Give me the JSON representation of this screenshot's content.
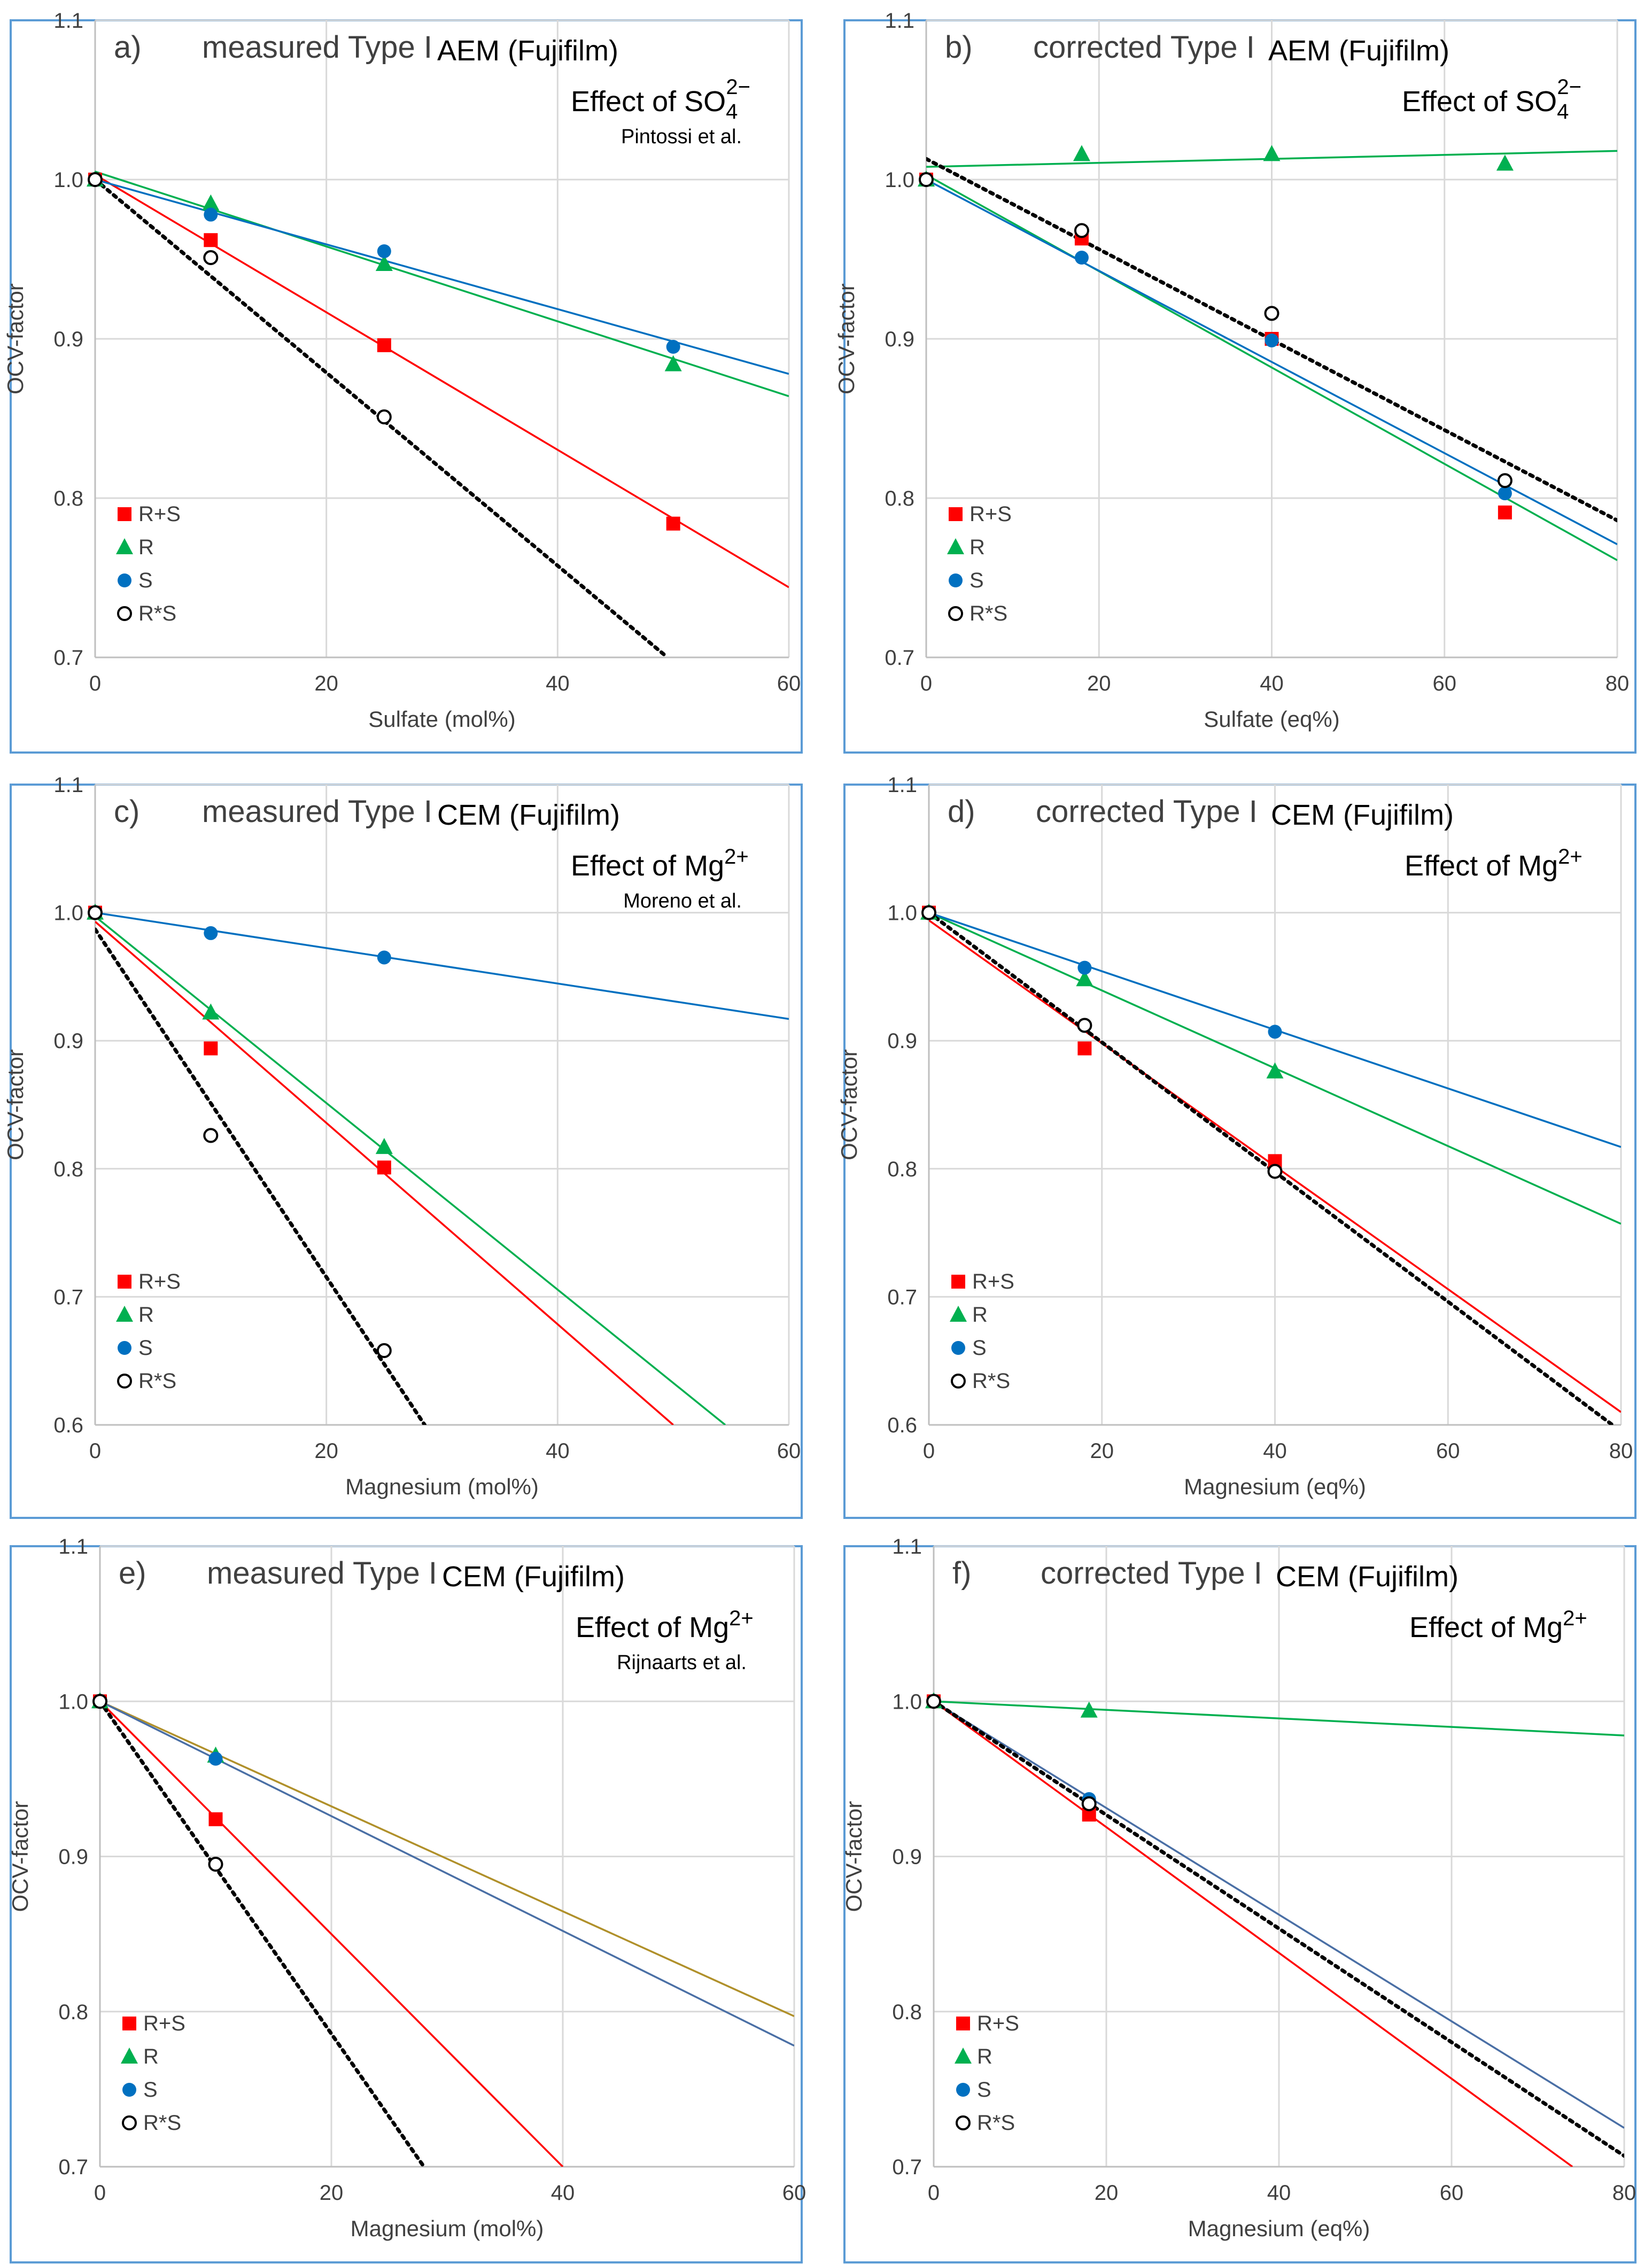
{
  "chart_data": [
    {
      "type": "scatter",
      "panel_label": "a)",
      "title": "measured Type I",
      "membrane": "AEM (Fujifilm)",
      "effect_prefix": "Effect of SO",
      "effect_sub": "4",
      "effect_sup": "2−",
      "source": "Pintossi et al.",
      "xlabel": "Sulfate (mol%)",
      "ylabel": "OCV-factor",
      "xlim": [
        0,
        60
      ],
      "ylim": [
        0.7,
        1.1
      ],
      "xticks": [
        0,
        20,
        40,
        60
      ],
      "yticks": [
        0.7,
        0.8,
        0.9,
        1.0,
        1.1
      ],
      "series": [
        {
          "name": "R+S",
          "marker": "square",
          "color": "#ff0000",
          "dotted": false,
          "x": [
            0,
            10,
            25,
            50
          ],
          "y": [
            1.0,
            0.962,
            0.896,
            0.784
          ],
          "trend": [
            [
              0,
              1.003
            ],
            [
              60,
              0.744
            ]
          ]
        },
        {
          "name": "R",
          "marker": "triangle",
          "color": "#00b050",
          "dotted": false,
          "x": [
            0,
            10,
            25,
            50
          ],
          "y": [
            1.0,
            0.985,
            0.947,
            0.884
          ],
          "trend": [
            [
              0,
              1.005
            ],
            [
              60,
              0.864
            ]
          ]
        },
        {
          "name": "S",
          "marker": "circle",
          "color": "#0070c0",
          "dotted": false,
          "x": [
            0,
            10,
            25,
            50
          ],
          "y": [
            1.0,
            0.978,
            0.955,
            0.895
          ],
          "trend": [
            [
              0,
              1.0
            ],
            [
              60,
              0.878
            ]
          ]
        },
        {
          "name": "R*S",
          "marker": "open-circle",
          "color": "#000000",
          "dotted": true,
          "x": [
            0,
            10,
            25
          ],
          "y": [
            1.0,
            0.951,
            0.851
          ],
          "trend": [
            [
              0,
              1.0
            ],
            [
              49.5,
              0.7
            ]
          ]
        }
      ]
    },
    {
      "type": "scatter",
      "panel_label": "b)",
      "title": "corrected Type I",
      "membrane": "AEM (Fujifilm)",
      "effect_prefix": "Effect of SO",
      "effect_sub": "4",
      "effect_sup": "2−",
      "source": "",
      "xlabel": "Sulfate (eq%)",
      "ylabel": "OCV-factor",
      "xlim": [
        0,
        80
      ],
      "ylim": [
        0.7,
        1.1
      ],
      "xticks": [
        0,
        20,
        40,
        60,
        80
      ],
      "yticks": [
        0.7,
        0.8,
        0.9,
        1.0,
        1.1
      ],
      "series": [
        {
          "name": "R+S",
          "marker": "square",
          "color": "#ff0000",
          "dotted": false,
          "x": [
            0,
            18,
            40,
            67
          ],
          "y": [
            1.0,
            0.963,
            0.9,
            0.791
          ],
          "trend": null
        },
        {
          "name": "R",
          "marker": "triangle",
          "color": "#00b050",
          "dotted": false,
          "x": [
            0,
            18,
            40,
            67
          ],
          "y": [
            1.0,
            1.016,
            1.016,
            1.01
          ],
          "trend": [
            [
              0,
              1.008
            ],
            [
              80,
              1.018
            ]
          ]
        },
        {
          "name": "S",
          "marker": "circle",
          "color": "#0070c0",
          "dotted": false,
          "x": [
            0,
            18,
            40,
            67
          ],
          "y": [
            1.0,
            0.951,
            0.899,
            0.803
          ],
          "trend": [
            [
              0,
              1.0
            ],
            [
              80,
              0.771
            ]
          ]
        },
        {
          "name": "R*S",
          "marker": "open-circle",
          "color": "#000000",
          "dotted": true,
          "x": [
            0,
            18,
            40,
            67
          ],
          "y": [
            1.0,
            0.968,
            0.916,
            0.811
          ],
          "trend": [
            [
              0,
              1.013
            ],
            [
              80,
              0.786
            ]
          ]
        }
      ],
      "extra_trend": {
        "color": "#00b050",
        "points": [
          [
            0,
            1.003
          ],
          [
            80,
            0.761
          ]
        ]
      }
    },
    {
      "type": "scatter",
      "panel_label": "c)",
      "title": "measured Type I",
      "membrane": "CEM (Fujifilm)",
      "effect_prefix": "Effect of Mg",
      "effect_sub": "",
      "effect_sup": "2+",
      "source": "Moreno et al.",
      "xlabel": "Magnesium (mol%)",
      "ylabel": "OCV-factor",
      "xlim": [
        0,
        60
      ],
      "ylim": [
        0.6,
        1.1
      ],
      "xticks": [
        0,
        20,
        40,
        60
      ],
      "yticks": [
        0.6,
        0.7,
        0.8,
        0.9,
        1.0,
        1.1
      ],
      "series": [
        {
          "name": "R+S",
          "marker": "square",
          "color": "#ff0000",
          "dotted": false,
          "x": [
            0,
            10,
            25
          ],
          "y": [
            1.0,
            0.894,
            0.801
          ],
          "trend": [
            [
              0,
              0.993
            ],
            [
              50,
              0.6
            ]
          ]
        },
        {
          "name": "R",
          "marker": "triangle",
          "color": "#00b050",
          "dotted": false,
          "x": [
            0,
            10,
            25
          ],
          "y": [
            1.0,
            0.922,
            0.817
          ],
          "trend": [
            [
              0,
              0.997
            ],
            [
              54.5,
              0.6
            ]
          ]
        },
        {
          "name": "S",
          "marker": "circle",
          "color": "#0070c0",
          "dotted": false,
          "x": [
            0,
            10,
            25
          ],
          "y": [
            1.0,
            0.984,
            0.965
          ],
          "trend": [
            [
              0,
              1.0
            ],
            [
              60,
              0.917
            ]
          ]
        },
        {
          "name": "R*S",
          "marker": "open-circle",
          "color": "#000000",
          "dotted": true,
          "x": [
            0,
            10,
            25
          ],
          "y": [
            1.0,
            0.826,
            0.658
          ],
          "trend": [
            [
              0,
              0.987
            ],
            [
              28.5,
              0.6
            ]
          ]
        }
      ]
    },
    {
      "type": "scatter",
      "panel_label": "d)",
      "title": "corrected Type I",
      "membrane": "CEM (Fujifilm)",
      "effect_prefix": "Effect of Mg",
      "effect_sub": "",
      "effect_sup": "2+",
      "source": "",
      "xlabel": "Magnesium (eq%)",
      "ylabel": "OCV-factor",
      "xlim": [
        0,
        80
      ],
      "ylim": [
        0.6,
        1.1
      ],
      "xticks": [
        0,
        20,
        40,
        60,
        80
      ],
      "yticks": [
        0.6,
        0.7,
        0.8,
        0.9,
        1.0,
        1.1
      ],
      "series": [
        {
          "name": "R+S",
          "marker": "square",
          "color": "#ff0000",
          "dotted": false,
          "x": [
            0,
            18,
            40
          ],
          "y": [
            1.0,
            0.894,
            0.806
          ],
          "trend": [
            [
              0,
              0.994
            ],
            [
              80,
              0.61
            ]
          ]
        },
        {
          "name": "R",
          "marker": "triangle",
          "color": "#00b050",
          "dotted": false,
          "x": [
            0,
            18,
            40
          ],
          "y": [
            1.0,
            0.948,
            0.876
          ],
          "trend": [
            [
              0,
              1.0
            ],
            [
              80,
              0.757
            ]
          ]
        },
        {
          "name": "S",
          "marker": "circle",
          "color": "#0070c0",
          "dotted": false,
          "x": [
            0,
            18,
            40
          ],
          "y": [
            1.0,
            0.957,
            0.907
          ],
          "trend": [
            [
              0,
              1.0
            ],
            [
              80,
              0.817
            ]
          ]
        },
        {
          "name": "R*S",
          "marker": "open-circle",
          "color": "#000000",
          "dotted": true,
          "x": [
            0,
            18,
            40
          ],
          "y": [
            1.0,
            0.912,
            0.798
          ],
          "trend": [
            [
              0,
              1.0
            ],
            [
              79,
              0.6
            ]
          ]
        }
      ]
    },
    {
      "type": "scatter",
      "panel_label": "e)",
      "title": "measured Type I",
      "membrane": "CEM (Fujifilm)",
      "effect_prefix": "Effect of Mg",
      "effect_sub": "",
      "effect_sup": "2+",
      "source": "Rijnaarts et al.",
      "xlabel": "Magnesium  (mol%)",
      "ylabel": "OCV-factor",
      "xlim": [
        0,
        60
      ],
      "ylim": [
        0.7,
        1.1
      ],
      "xticks": [
        0,
        20,
        40,
        60
      ],
      "yticks": [
        0.7,
        0.8,
        0.9,
        1.0,
        1.1
      ],
      "series": [
        {
          "name": "R+S",
          "marker": "square",
          "color": "#ff0000",
          "dotted": false,
          "x": [
            0,
            10
          ],
          "y": [
            1.0,
            0.924
          ],
          "trend": [
            [
              0,
              1.0
            ],
            [
              40,
              0.7
            ]
          ]
        },
        {
          "name": "R",
          "marker": "triangle",
          "color": "#00b050",
          "dotted": false,
          "x": [
            0,
            10
          ],
          "y": [
            1.0,
            0.965
          ],
          "trend": null
        },
        {
          "name": "S",
          "marker": "circle",
          "color": "#0070c0",
          "dotted": false,
          "x": [
            0,
            10
          ],
          "y": [
            1.0,
            0.963
          ],
          "trend": null
        },
        {
          "name": "R*S",
          "marker": "open-circle",
          "color": "#000000",
          "dotted": true,
          "x": [
            0,
            10
          ],
          "y": [
            1.0,
            0.895
          ],
          "trend": [
            [
              0,
              1.0
            ],
            [
              28,
              0.7
            ]
          ]
        }
      ],
      "extra_trends": [
        {
          "color": "#b0902a",
          "points": [
            [
              0,
              1.0
            ],
            [
              60,
              0.797
            ]
          ]
        },
        {
          "color": "#4a6fa5",
          "points": [
            [
              0,
              1.0
            ],
            [
              60,
              0.778
            ]
          ]
        }
      ]
    },
    {
      "type": "scatter",
      "panel_label": "f)",
      "title": "corrected Type I",
      "membrane": "CEM (Fujifilm)",
      "effect_prefix": "Effect of Mg",
      "effect_sub": "",
      "effect_sup": "2+",
      "source": "",
      "xlabel": "Magnesium (eq%)",
      "ylabel": "OCV-factor",
      "xlim": [
        0,
        80
      ],
      "ylim": [
        0.7,
        1.1
      ],
      "xticks": [
        0,
        20,
        40,
        60,
        80
      ],
      "yticks": [
        0.7,
        0.8,
        0.9,
        1.0,
        1.1
      ],
      "series": [
        {
          "name": "R+S",
          "marker": "square",
          "color": "#ff0000",
          "dotted": false,
          "x": [
            0,
            18
          ],
          "y": [
            1.0,
            0.927
          ],
          "trend": [
            [
              0,
              1.0
            ],
            [
              74,
              0.7
            ]
          ]
        },
        {
          "name": "R",
          "marker": "triangle",
          "color": "#00b050",
          "dotted": false,
          "x": [
            0,
            18
          ],
          "y": [
            1.0,
            0.994
          ],
          "trend": [
            [
              0,
              1.0
            ],
            [
              80,
              0.978
            ]
          ]
        },
        {
          "name": "S",
          "marker": "circle",
          "color": "#0070c0",
          "dotted": false,
          "x": [
            0,
            18
          ],
          "y": [
            1.0,
            0.937
          ],
          "trend": null
        },
        {
          "name": "R*S",
          "marker": "open-circle",
          "color": "#000000",
          "dotted": true,
          "x": [
            0,
            18
          ],
          "y": [
            1.0,
            0.934
          ],
          "trend": [
            [
              0,
              1.0
            ],
            [
              80,
              0.707
            ]
          ]
        }
      ],
      "extra_trend": {
        "color": "#4a6fa5",
        "points": [
          [
            0,
            1.0
          ],
          [
            80,
            0.725
          ]
        ]
      }
    }
  ]
}
